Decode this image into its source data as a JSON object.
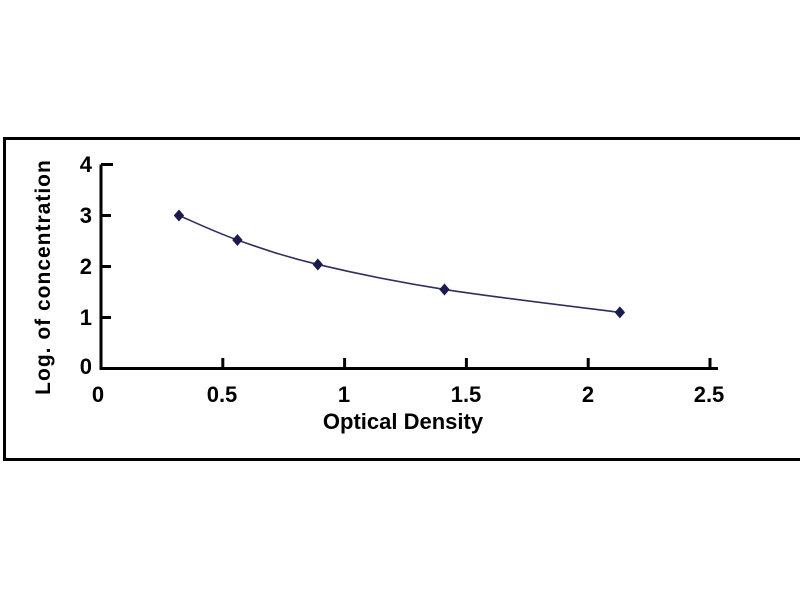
{
  "figure": {
    "background_color": "#ffffff",
    "frame_border_color": "#000000"
  },
  "chart_data": {
    "type": "line",
    "title": "",
    "xlabel": "Optical Density",
    "ylabel": "Log. of concentration",
    "x": [
      0.32,
      0.56,
      0.89,
      1.41,
      2.13
    ],
    "y": [
      3.0,
      2.52,
      2.04,
      1.55,
      1.1
    ],
    "xlim": [
      0,
      2.5
    ],
    "ylim": [
      0,
      4
    ],
    "x_ticks": [
      0,
      0.5,
      1,
      1.5,
      2,
      2.5
    ],
    "x_tick_labels": [
      "0",
      "0.5",
      "1",
      "1.5",
      "2",
      "2.5"
    ],
    "y_ticks": [
      0,
      1,
      2,
      3,
      4
    ],
    "y_tick_labels": [
      "0",
      "1",
      "2",
      "3",
      "4"
    ],
    "grid": false,
    "legend": null,
    "marker": "diamond",
    "axis_color": "#000000",
    "tick_label_color": "#000000",
    "line_color": "#2f2f5e",
    "marker_color": "#1b1b4f"
  }
}
